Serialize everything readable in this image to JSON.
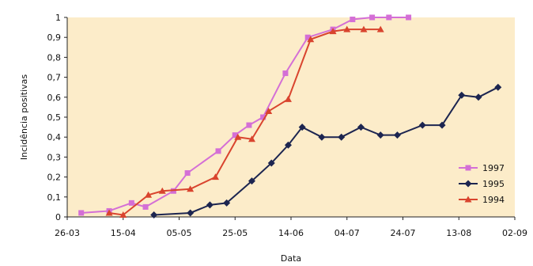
{
  "chart_data": {
    "type": "line",
    "xlabel": "Data",
    "ylabel": "Incidência positivas",
    "x_ticks": [
      "26-03",
      "15-04",
      "05-05",
      "25-05",
      "14-06",
      "04-07",
      "24-07",
      "13-08",
      "02-09"
    ],
    "y_ticks": [
      "0",
      "0,1",
      "0,2",
      "0,3",
      "0,4",
      "0,5",
      "0,6",
      "0,7",
      "0,8",
      "0,9",
      "1"
    ],
    "ylim": [
      0,
      1
    ],
    "grid": false,
    "legend_position": "bottom-right",
    "series": [
      {
        "name": "1997",
        "color": "#d46fd6",
        "marker": "square",
        "points": [
          {
            "x": "31-03",
            "y": 0.02
          },
          {
            "x": "10-04",
            "y": 0.03
          },
          {
            "x": "18-04",
            "y": 0.07
          },
          {
            "x": "23-04",
            "y": 0.05
          },
          {
            "x": "03-05",
            "y": 0.13
          },
          {
            "x": "08-05",
            "y": 0.22
          },
          {
            "x": "19-05",
            "y": 0.33
          },
          {
            "x": "25-05",
            "y": 0.41
          },
          {
            "x": "30-05",
            "y": 0.46
          },
          {
            "x": "04-06",
            "y": 0.5
          },
          {
            "x": "12-06",
            "y": 0.72
          },
          {
            "x": "20-06",
            "y": 0.9
          },
          {
            "x": "29-06",
            "y": 0.94
          },
          {
            "x": "06-07",
            "y": 0.99
          },
          {
            "x": "13-07",
            "y": 1.0
          },
          {
            "x": "19-07",
            "y": 1.0
          },
          {
            "x": "26-07",
            "y": 1.0
          }
        ]
      },
      {
        "name": "1995",
        "color": "#1c2550",
        "marker": "diamond",
        "points": [
          {
            "x": "26-04",
            "y": 0.01
          },
          {
            "x": "09-05",
            "y": 0.02
          },
          {
            "x": "16-05",
            "y": 0.06
          },
          {
            "x": "22-05",
            "y": 0.07
          },
          {
            "x": "31-05",
            "y": 0.18
          },
          {
            "x": "07-06",
            "y": 0.27
          },
          {
            "x": "13-06",
            "y": 0.36
          },
          {
            "x": "18-06",
            "y": 0.45
          },
          {
            "x": "25-06",
            "y": 0.4
          },
          {
            "x": "02-07",
            "y": 0.4
          },
          {
            "x": "09-07",
            "y": 0.45
          },
          {
            "x": "16-07",
            "y": 0.41
          },
          {
            "x": "22-07",
            "y": 0.41
          },
          {
            "x": "31-07",
            "y": 0.46
          },
          {
            "x": "07-08",
            "y": 0.46
          },
          {
            "x": "14-08",
            "y": 0.61
          },
          {
            "x": "20-08",
            "y": 0.6
          },
          {
            "x": "27-08",
            "y": 0.65
          }
        ]
      },
      {
        "name": "1994",
        "color": "#d9442e",
        "marker": "triangle",
        "points": [
          {
            "x": "10-04",
            "y": 0.02
          },
          {
            "x": "15-04",
            "y": 0.01
          },
          {
            "x": "24-04",
            "y": 0.11
          },
          {
            "x": "29-04",
            "y": 0.13
          },
          {
            "x": "09-05",
            "y": 0.14
          },
          {
            "x": "18-05",
            "y": 0.2
          },
          {
            "x": "26-05",
            "y": 0.4
          },
          {
            "x": "31-05",
            "y": 0.39
          },
          {
            "x": "06-06",
            "y": 0.53
          },
          {
            "x": "13-06",
            "y": 0.59
          },
          {
            "x": "21-06",
            "y": 0.89
          },
          {
            "x": "29-06",
            "y": 0.93
          },
          {
            "x": "04-07",
            "y": 0.94
          },
          {
            "x": "10-07",
            "y": 0.94
          },
          {
            "x": "16-07",
            "y": 0.94
          }
        ]
      }
    ]
  },
  "colors": {
    "plot_background": "#fcecc9",
    "axis": "#222222"
  }
}
